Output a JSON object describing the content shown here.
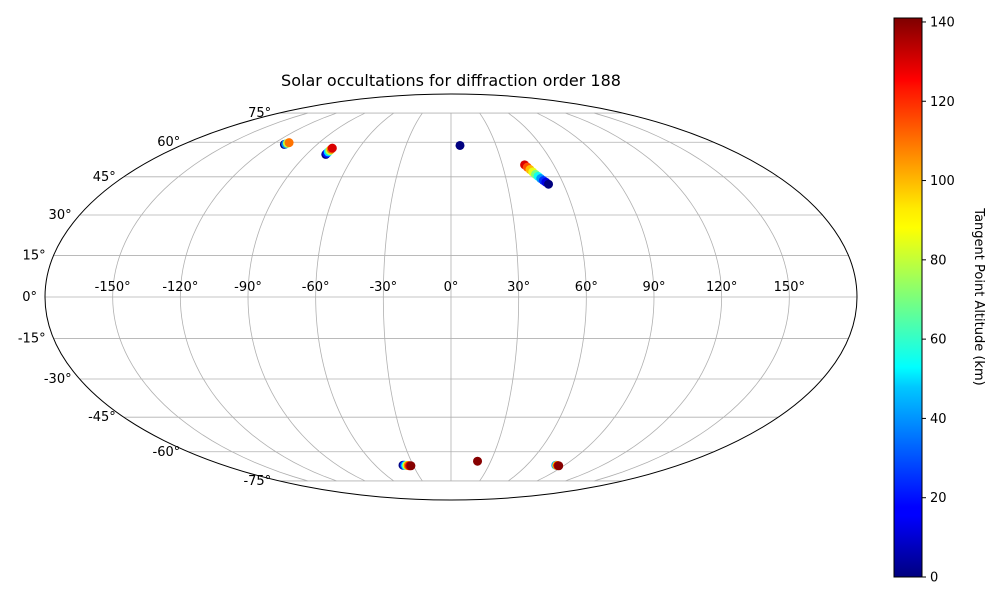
{
  "chart_data": {
    "type": "scatter",
    "projection": "mollweide",
    "title": "Solar occultations for diffraction order 188",
    "xlabel": "",
    "ylabel": "",
    "xlim": [
      -180,
      180
    ],
    "ylim": [
      -90,
      90
    ],
    "grid": true,
    "lon_ticks": [
      -150,
      -120,
      -90,
      -60,
      -30,
      0,
      30,
      60,
      90,
      120,
      150
    ],
    "lon_tick_labels": [
      "-150°",
      "-120°",
      "-90°",
      "-60°",
      "-30°",
      "0°",
      "30°",
      "60°",
      "90°",
      "120°",
      "150°"
    ],
    "lat_ticks": [
      -75,
      -60,
      -45,
      -30,
      -15,
      0,
      15,
      30,
      45,
      60,
      75
    ],
    "lat_tick_labels": [
      "-75°",
      "-60°",
      "-45°",
      "-30°",
      "-15°",
      "0°",
      "15°",
      "30°",
      "45°",
      "60°",
      "75°"
    ],
    "colorbar": {
      "label": "Tangent Point Altitude (km)",
      "range": [
        0,
        141
      ],
      "ticks": [
        0,
        20,
        40,
        60,
        80,
        100,
        120,
        140
      ],
      "tick_labels": [
        "0",
        "20",
        "40",
        "60",
        "80",
        "100",
        "120",
        "140"
      ],
      "colormap": "jet"
    },
    "series": [
      {
        "points": [
          {
            "lon": -112.0,
            "lat": 59.0,
            "alt": 0
          },
          {
            "lon": -111.5,
            "lat": 59.2,
            "alt": 40
          },
          {
            "lon": -111.0,
            "lat": 59.5,
            "alt": 80
          },
          {
            "lon": -110.5,
            "lat": 59.8,
            "alt": 110
          }
        ]
      },
      {
        "points": [
          {
            "lon": -78.0,
            "lat": 54.5,
            "alt": 0
          },
          {
            "lon": -77.9,
            "lat": 55.0,
            "alt": 20
          },
          {
            "lon": -77.8,
            "lat": 55.6,
            "alt": 50
          },
          {
            "lon": -77.6,
            "lat": 56.2,
            "alt": 80
          },
          {
            "lon": -77.5,
            "lat": 56.8,
            "alt": 110
          },
          {
            "lon": -77.4,
            "lat": 57.3,
            "alt": 130
          }
        ]
      },
      {
        "points": [
          {
            "lon": 6.0,
            "lat": 58.5,
            "alt": 0
          }
        ]
      },
      {
        "points": [
          {
            "lon": 43.0,
            "lat": 50.0,
            "alt": 130
          },
          {
            "lon": 44.0,
            "lat": 49.0,
            "alt": 115
          },
          {
            "lon": 45.0,
            "lat": 48.0,
            "alt": 100
          },
          {
            "lon": 46.0,
            "lat": 47.0,
            "alt": 85
          },
          {
            "lon": 47.0,
            "lat": 46.0,
            "alt": 70
          },
          {
            "lon": 48.0,
            "lat": 45.2,
            "alt": 55
          },
          {
            "lon": 49.0,
            "lat": 44.3,
            "alt": 40
          },
          {
            "lon": 50.0,
            "lat": 43.5,
            "alt": 25
          },
          {
            "lon": 51.0,
            "lat": 42.8,
            "alt": 12
          },
          {
            "lon": 52.0,
            "lat": 42.0,
            "alt": 0
          }
        ]
      },
      {
        "points": [
          {
            "lon": -38.0,
            "lat": -66.5,
            "alt": 0
          },
          {
            "lon": -37.0,
            "lat": -66.5,
            "alt": 25
          },
          {
            "lon": -36.0,
            "lat": -66.6,
            "alt": 55
          },
          {
            "lon": -35.0,
            "lat": -66.6,
            "alt": 85
          },
          {
            "lon": -34.0,
            "lat": -66.7,
            "alt": 110
          },
          {
            "lon": -33.0,
            "lat": -66.8,
            "alt": 130
          },
          {
            "lon": -32.0,
            "lat": -66.8,
            "alt": 140
          }
        ]
      },
      {
        "points": [
          {
            "lon": 20.0,
            "lat": -64.5,
            "alt": 140
          }
        ]
      },
      {
        "points": [
          {
            "lon": 83.0,
            "lat": -66.5,
            "alt": 40
          },
          {
            "lon": 84.0,
            "lat": -66.6,
            "alt": 90
          },
          {
            "lon": 85.0,
            "lat": -66.7,
            "alt": 130
          },
          {
            "lon": 86.0,
            "lat": -66.8,
            "alt": 140
          }
        ]
      }
    ]
  }
}
